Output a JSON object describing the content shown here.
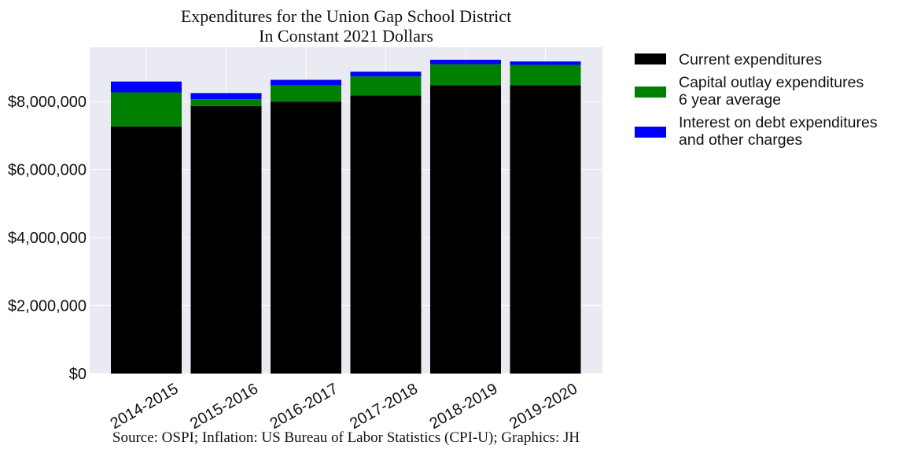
{
  "chart_data": {
    "type": "bar",
    "stacked": true,
    "title": [
      "Expenditures for the Union Gap School District",
      "In Constant 2021 Dollars"
    ],
    "source": "Source: OSPI; Inflation: US Bureau of Labor Statistics (CPI-U); Graphics: JH",
    "xlabel": "",
    "ylabel": "",
    "categories": [
      "2014-2015",
      "2015-2016",
      "2016-2017",
      "2017-2018",
      "2018-2019",
      "2019-2020"
    ],
    "series": [
      {
        "name": [
          "Current expenditures"
        ],
        "color": "#000000",
        "values": [
          7270000,
          7870000,
          8000000,
          8180000,
          8480000,
          8480000
        ]
      },
      {
        "name": [
          "Capital outlay expenditures",
          "6 year average"
        ],
        "color": "#008000",
        "values": [
          1000000,
          200000,
          480000,
          560000,
          620000,
          600000
        ]
      },
      {
        "name": [
          "Interest on debt expenditures",
          "and other charges"
        ],
        "color": "#0000ff",
        "values": [
          320000,
          180000,
          160000,
          140000,
          130000,
          100000
        ]
      }
    ],
    "ylim": [
      0,
      9600000
    ],
    "yticks": [
      0,
      2000000,
      4000000,
      6000000,
      8000000
    ],
    "ytick_labels": [
      "$0",
      "$2,000,000",
      "$4,000,000",
      "$6,000,000",
      "$8,000,000"
    ],
    "grid": true,
    "legend_position": "outside-right"
  }
}
